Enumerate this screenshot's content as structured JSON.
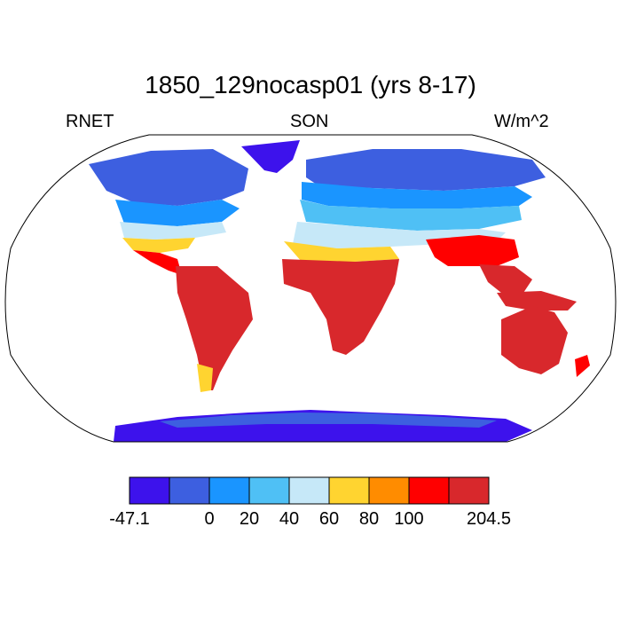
{
  "title": "1850_129nocasp01 (yrs 8-17)",
  "left_label": "RNET",
  "center_label": "SON",
  "right_label": "W/m^2",
  "colorbar": {
    "colors": [
      "#3d12ec",
      "#3d5fe0",
      "#1a95ff",
      "#4fc0f5",
      "#c6e8f8",
      "#ffd430",
      "#ff8c00",
      "#ff0000",
      "#d8282c"
    ],
    "labels": [
      "-47.1",
      "0",
      "20",
      "40",
      "60",
      "80",
      "100",
      "204.5"
    ]
  },
  "map": {
    "projection": "Robinson",
    "variable": "RNET",
    "season": "SON",
    "units": "W/m^2",
    "color_min": -47.1,
    "color_max": 204.5
  }
}
